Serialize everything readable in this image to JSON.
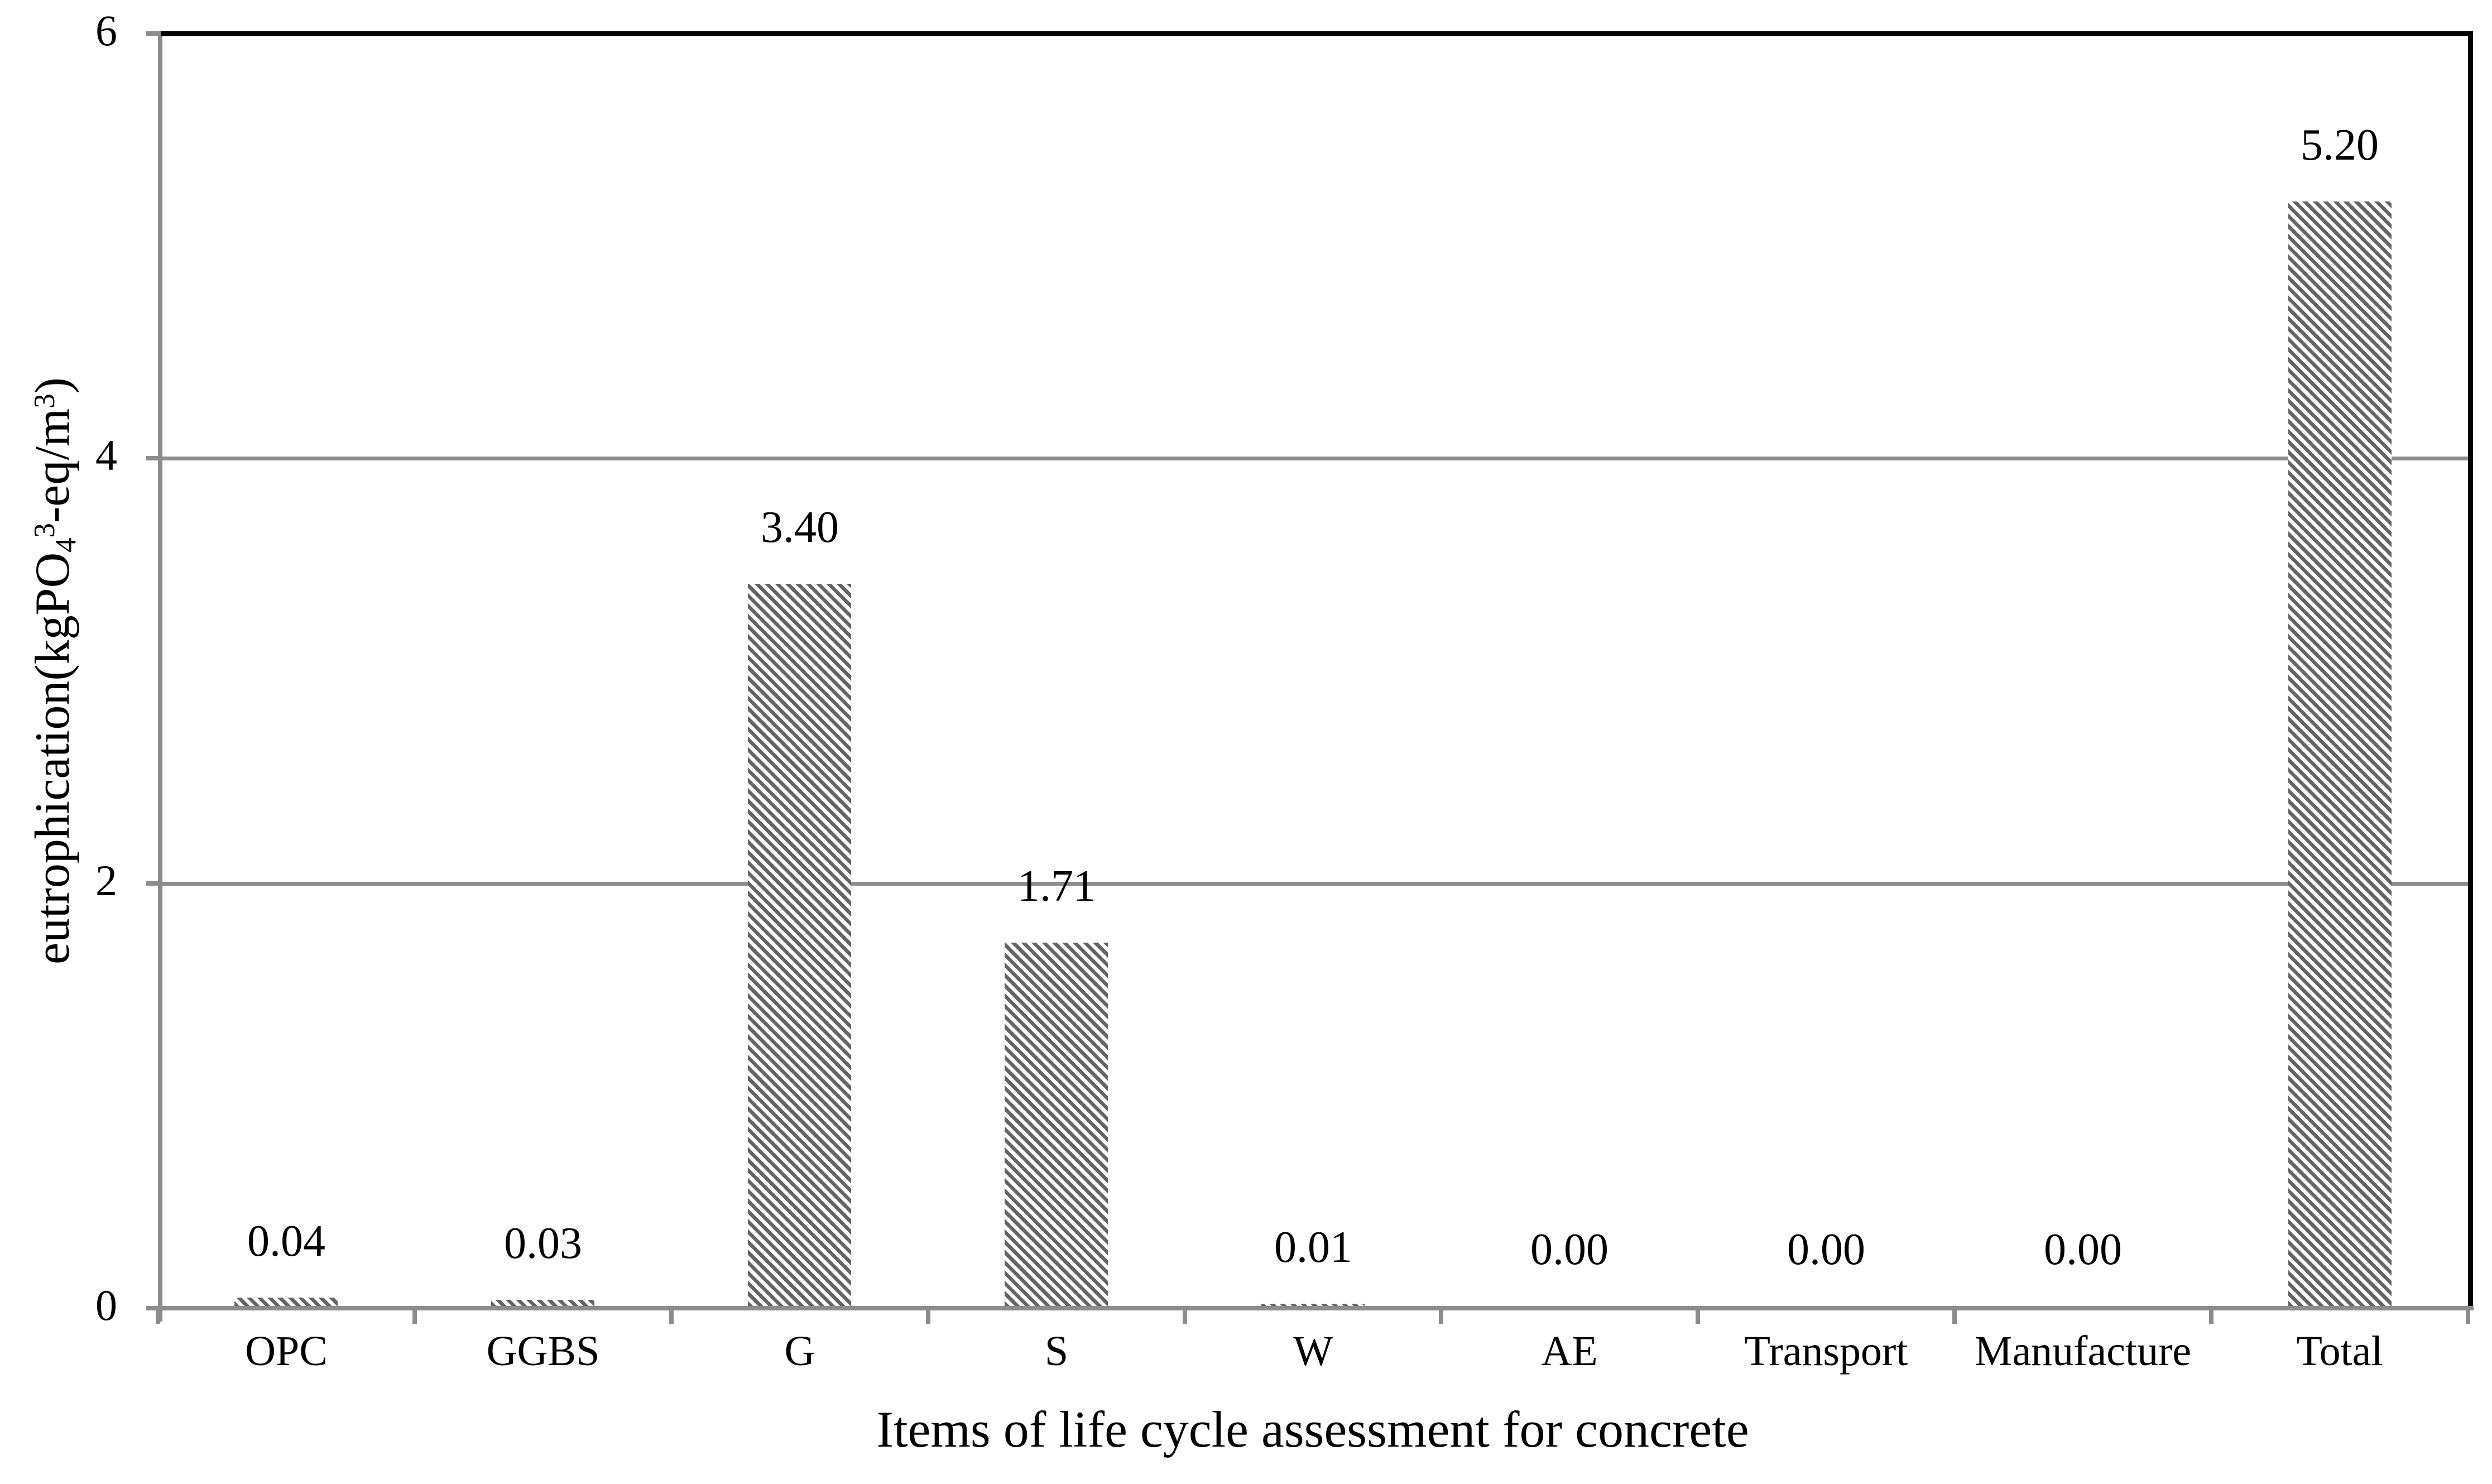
{
  "chart_data": {
    "type": "bar",
    "title": "",
    "categories": [
      "OPC",
      "GGBS",
      "G",
      "S",
      "W",
      "AE",
      "Transport",
      "Manufacture",
      "Total"
    ],
    "values": [
      0.04,
      0.03,
      3.4,
      1.71,
      0.01,
      0.0,
      0.0,
      0.0,
      5.2
    ],
    "value_labels": [
      "0.04",
      "0.03",
      "3.40",
      "1.71",
      "0.01",
      "0.00",
      "0.00",
      "0.00",
      "5.20"
    ],
    "xlabel": "Items of life cycle assessment for concrete",
    "ylabel": "eutrophication(kgPO43-eq/m3)",
    "ylabel_parts": {
      "pre": "eutrophication(kgPO",
      "sub4": "4",
      "sup3a": "3",
      "mid": "-eq/m",
      "sup3b": "3",
      "post": ")"
    },
    "ylim": [
      0,
      6
    ],
    "yticks": [
      0,
      2,
      4,
      6
    ],
    "ytick_labels": [
      "0",
      "2",
      "4",
      "6"
    ],
    "grid": "horizontal-major",
    "legend": false,
    "bar_style": {
      "hatch": "diagonal-down",
      "hatch_color": "#646464",
      "fill_background": "#ffffff"
    },
    "colors": {
      "axis": "#8c8c8c",
      "gridline": "#8c8c8c",
      "plot_border": "#000000",
      "text": "#000000",
      "background": "#ffffff"
    }
  }
}
